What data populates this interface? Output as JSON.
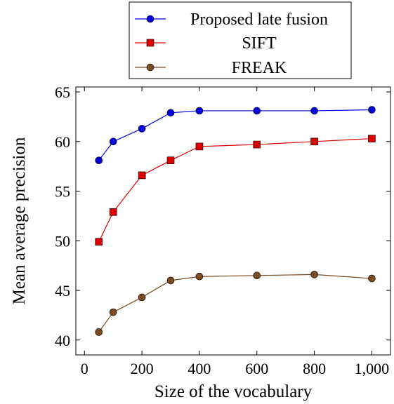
{
  "chart_data": {
    "type": "line",
    "title": "",
    "xlabel": "Size of the vocabulary",
    "ylabel": "Mean average precision",
    "xlim": [
      -30,
      1065
    ],
    "ylim": [
      38.5,
      65.5
    ],
    "xticks": [
      0,
      200,
      400,
      600,
      800,
      1000
    ],
    "xtick_labels": [
      "0",
      "200",
      "400",
      "600",
      "800",
      "1,000"
    ],
    "yticks": [
      40,
      45,
      50,
      55,
      60,
      65
    ],
    "ytick_labels": [
      "40",
      "45",
      "50",
      "55",
      "60",
      "65"
    ],
    "grid": false,
    "legend_position": "top-center, above plot",
    "series": [
      {
        "name": "Proposed late fusion",
        "color": "#0000dd",
        "marker": "circle",
        "x": [
          50,
          100,
          200,
          300,
          400,
          600,
          800,
          1000
        ],
        "y": [
          58.1,
          60.0,
          61.3,
          62.9,
          63.1,
          63.1,
          63.1,
          63.2
        ]
      },
      {
        "name": "SIFT",
        "color": "#dd0000",
        "marker": "square",
        "x": [
          50,
          100,
          200,
          300,
          400,
          600,
          800,
          1000
        ],
        "y": [
          49.9,
          52.9,
          56.6,
          58.1,
          59.5,
          59.7,
          60.0,
          60.3
        ]
      },
      {
        "name": "FREAK",
        "color": "#7b4a1e",
        "marker": "circle",
        "x": [
          50,
          100,
          200,
          300,
          400,
          600,
          800,
          1000
        ],
        "y": [
          40.8,
          42.8,
          44.3,
          46.0,
          46.4,
          46.5,
          46.6,
          46.2
        ]
      }
    ]
  }
}
